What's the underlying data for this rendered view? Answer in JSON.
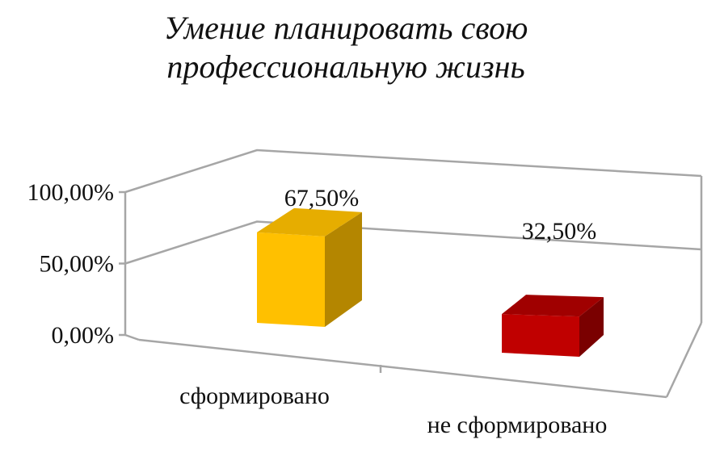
{
  "chart_data": {
    "type": "bar",
    "title_lines": [
      "Умение планировать свою",
      "профессиональную жизнь"
    ],
    "categories": [
      "сформировано",
      "не сформировано"
    ],
    "values": [
      67.5,
      32.5
    ],
    "value_labels": [
      "67,50%",
      "32,50%"
    ],
    "ylim": [
      0,
      100
    ],
    "ytick_values": [
      0,
      50,
      100
    ],
    "ytick_labels": [
      "0,00%",
      "50,00%",
      "100,00%"
    ],
    "grid": true,
    "legend": "none",
    "projection": "3d-column",
    "colors": {
      "bar_1_front": "#ffc000",
      "bar_1_top": "#e6ad00",
      "bar_1_side": "#b48600",
      "bar_2_front": "#c00000",
      "bar_2_top": "#a00000",
      "bar_2_side": "#7a0000",
      "grid": "#a6a6a6"
    }
  }
}
